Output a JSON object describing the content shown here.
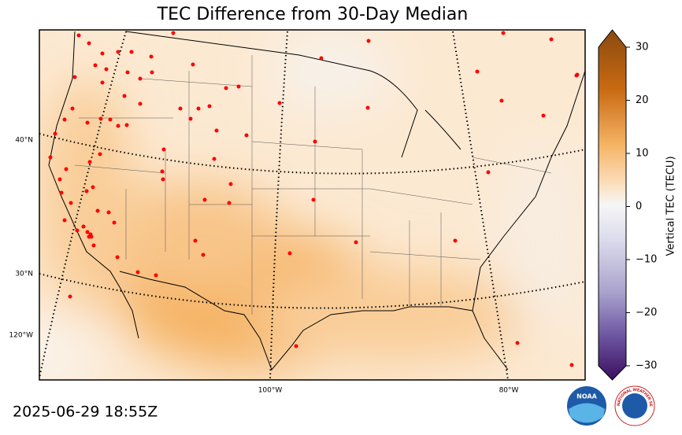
{
  "map": {
    "title": "TEC Difference from 30-Day Median",
    "timestamp": "2025-06-29 18:55Z",
    "graticule_labels": {
      "lat": [
        "40°N",
        "30°N"
      ],
      "lon_left": "120°W",
      "lon_bottom": [
        "100°W",
        "80°W"
      ]
    },
    "colorbar": {
      "label": "Vertical TEC (TECU)",
      "lim": [
        -30,
        30
      ],
      "ticks": [
        30,
        20,
        10,
        0,
        {
          "value": -10,
          "label": "−10"
        },
        {
          "value": -20,
          "label": "−20"
        },
        {
          "value": -30,
          "label": "−30"
        }
      ]
    },
    "logos": {
      "noaa": "NOAA",
      "nws": "NATIONAL WEATHER SERVICE"
    }
  }
}
